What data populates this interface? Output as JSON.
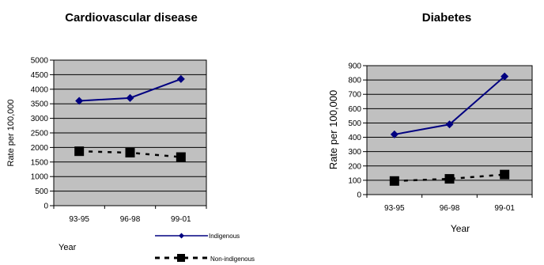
{
  "colors": {
    "plot_bg": "#c0c0c0",
    "indigenous": "#000080",
    "non_indigenous": "#000000"
  },
  "chart_data": [
    {
      "type": "line",
      "title": "Cardiovascular disease",
      "xlabel": "Year",
      "ylabel": "Rate per 100,000",
      "categories": [
        "93-95",
        "96-98",
        "99-01"
      ],
      "ylim": [
        0,
        5000
      ],
      "yticks": [
        0,
        500,
        1000,
        1500,
        2000,
        2500,
        3000,
        3500,
        4000,
        4500,
        5000
      ],
      "grid": true,
      "legend": {
        "position": "bottom-right"
      },
      "series": [
        {
          "name": "Indigenous",
          "values": [
            3600,
            3700,
            4350
          ],
          "marker": "diamond",
          "style": "solid"
        },
        {
          "name": "Non-indigenous",
          "values": [
            1870,
            1820,
            1670
          ],
          "marker": "square",
          "style": "dashed"
        }
      ]
    },
    {
      "type": "line",
      "title": "Diabetes",
      "xlabel": "Year",
      "ylabel": "Rate per 100,000",
      "categories": [
        "93-95",
        "96-98",
        "99-01"
      ],
      "ylim": [
        0,
        900
      ],
      "yticks": [
        0,
        100,
        200,
        300,
        400,
        500,
        600,
        700,
        800,
        900
      ],
      "grid": true,
      "series": [
        {
          "values": [
            420,
            490,
            825
          ],
          "marker": "diamond",
          "style": "solid"
        },
        {
          "values": [
            95,
            110,
            140
          ],
          "marker": "square",
          "style": "dashed"
        }
      ]
    }
  ]
}
